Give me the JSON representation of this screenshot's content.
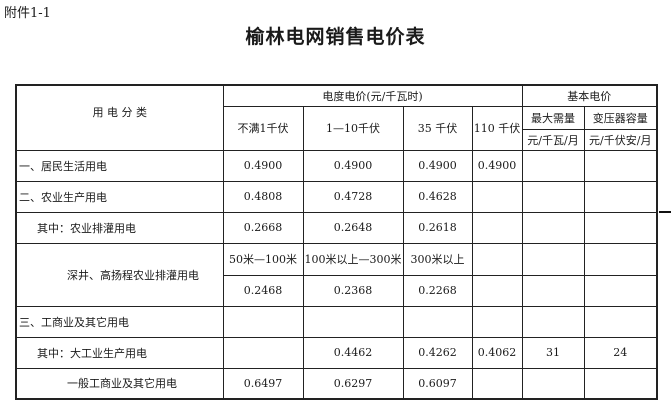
{
  "attachment_label": "附件1-1",
  "title": "榆林电网销售电价表",
  "table": {
    "category_header": "用 电 分 类",
    "energy_price_header": "电度电价(元/千瓦时)",
    "voltage_levels": [
      "不满1千伏",
      "1—10千伏",
      "35 千伏",
      "110 千伏"
    ],
    "basic_price_header": "基本电价",
    "basic_cols": [
      {
        "label": "最大需量",
        "unit": "元/千瓦/月"
      },
      {
        "label": "变压器容量",
        "unit": "元/千伏安/月"
      }
    ],
    "rows": [
      {
        "category": "一、居民生活用电",
        "values": [
          "0.4900",
          "0.4900",
          "0.4900",
          "0.4900",
          "",
          ""
        ]
      },
      {
        "category": "二、农业生产用电",
        "values": [
          "0.4808",
          "0.4728",
          "0.4628",
          "",
          "",
          ""
        ]
      },
      {
        "category": "其中：农业排灌用电",
        "values": [
          "0.2668",
          "0.2648",
          "0.2618",
          "",
          "",
          ""
        ]
      }
    ],
    "deep_well": {
      "category": "深井、高扬程农业排灌用电",
      "depth_ranges": [
        "50米—100米",
        "100米以上—300米",
        "300米以上"
      ],
      "values": [
        "0.2468",
        "0.2368",
        "0.2268"
      ]
    },
    "rows2": [
      {
        "category": "三、工商业及其它用电",
        "values": [
          "",
          "",
          "",
          "",
          "",
          ""
        ]
      },
      {
        "category": "其中：大工业生产用电",
        "values": [
          "",
          "0.4462",
          "0.4262",
          "0.4062",
          "31",
          "24"
        ]
      },
      {
        "category": "一般工商业及其它用电",
        "values": [
          "0.6497",
          "0.6297",
          "0.6097",
          "",
          "",
          ""
        ]
      }
    ]
  }
}
